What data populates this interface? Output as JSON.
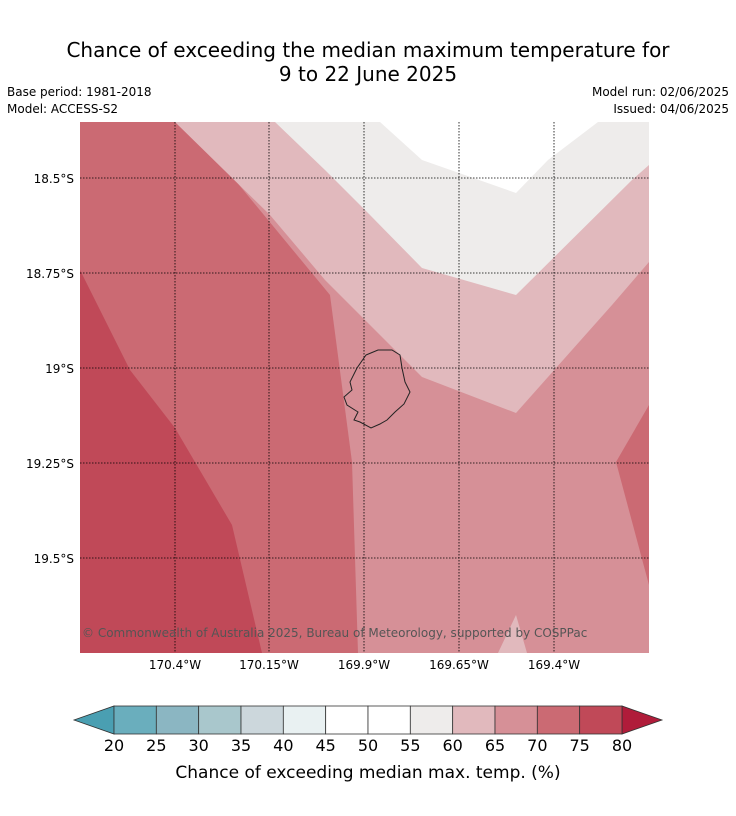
{
  "title_line1": "Chance of exceeding the median maximum temperature for",
  "title_line2": "9 to 22 June 2025",
  "base_period": "Base period: 1981-2018",
  "model": "Model: ACCESS-S2",
  "model_run": "Model run: 02/06/2025",
  "issued": "Issued: 04/06/2025",
  "copyright": "© Commonwealth of Australia 2025, Bureau of Meteorology, supported by COSPPac",
  "lat_ticks": [
    "18.5°S",
    "18.75°S",
    "19°S",
    "19.25°S",
    "19.5°S"
  ],
  "lon_ticks": [
    "170.4°W",
    "170.15°W",
    "169.9°W",
    "169.65°W",
    "169.4°W"
  ],
  "colorbar": {
    "label": "Chance of exceeding median max. temp. (%)",
    "ticks": [
      "20",
      "25",
      "30",
      "35",
      "40",
      "45",
      "50",
      "55",
      "60",
      "65",
      "70",
      "75",
      "80"
    ],
    "under_color": "#4a9fb2",
    "over_color": "#b01c3a",
    "colors": [
      "#6aaebd",
      "#8bb6c2",
      "#a9c7cc",
      "#ccd7dc",
      "#e9f1f2",
      "#ffffff",
      "#ffffff",
      "#eeeceb",
      "#e1b9bd",
      "#d69097",
      "#cb6a73",
      "#c04958"
    ]
  },
  "map_fill_colors": {
    "p55_60": "#eeeceb",
    "p60_65": "#e1b9bd",
    "p65_70": "#d69097",
    "p70_75": "#cb6a73",
    "p75_80": "#c04958"
  }
}
